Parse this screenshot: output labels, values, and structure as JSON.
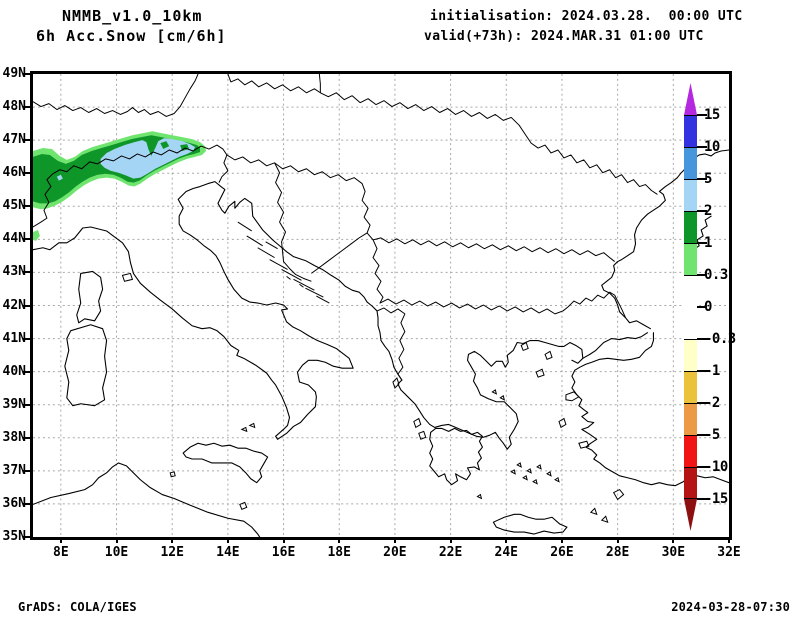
{
  "header": {
    "model": "NMMB_v1.0_10km",
    "field": "6h Acc.Snow [cm/6h]",
    "init_line": "initialisation: 2024.03.28.  00:00 UTC",
    "valid_line": "valid(+73h): 2024.MAR.31 01:00 UTC"
  },
  "footer": {
    "left": "GrADS: COLA/IGES",
    "right": "2024-03-28-07:30"
  },
  "axes": {
    "lat": [
      "49N",
      "48N",
      "47N",
      "46N",
      "45N",
      "44N",
      "43N",
      "42N",
      "41N",
      "40N",
      "39N",
      "38N",
      "37N",
      "36N",
      "35N"
    ],
    "lon": [
      "8E",
      "10E",
      "12E",
      "14E",
      "16E",
      "18E",
      "20E",
      "22E",
      "24E",
      "26E",
      "28E",
      "30E",
      "32E"
    ]
  },
  "colorbar": {
    "labels": [
      "15",
      "10",
      "5",
      "2",
      "1",
      "0.3",
      "0",
      "-0.3",
      "-1",
      "-2",
      "-5",
      "-10",
      "-15"
    ],
    "levels": [
      15,
      10,
      5,
      2,
      1,
      0.3,
      0,
      -0.3,
      -1,
      -2,
      -5,
      -10,
      -15
    ],
    "over_color": "#b428e0",
    "under_color": "#8c1010",
    "segments": [
      {
        "to": 15,
        "from": 10,
        "color": "#3232e0"
      },
      {
        "to": 10,
        "from": 5,
        "color": "#4596dc"
      },
      {
        "to": 5,
        "from": 2,
        "color": "#a5d5f5"
      },
      {
        "to": 2,
        "from": 1,
        "color": "#0f9628"
      },
      {
        "to": 1,
        "from": 0.3,
        "color": "#6fe46f"
      },
      {
        "to": 0.3,
        "from": -0.3,
        "color": "#ffffff"
      },
      {
        "to": -0.3,
        "from": -1,
        "color": "#ffffc8"
      },
      {
        "to": -1,
        "from": -2,
        "color": "#ecc23c"
      },
      {
        "to": -2,
        "from": -5,
        "color": "#ec9a46"
      },
      {
        "to": -5,
        "from": -10,
        "color": "#f01414"
      },
      {
        "to": -10,
        "from": -15,
        "color": "#b41414"
      }
    ]
  },
  "palette": {
    "light_green": "#6fe46f",
    "dark_green": "#0f9628",
    "light_blue": "#a5d5f5",
    "grid": "#a8a8a8"
  },
  "chart_data": {
    "type": "heatmap",
    "title": "6h Acc.Snow [cm/6h]",
    "model": "NMMB_v1.0_10km",
    "initialisation": "2024.03.28.  00:00 UTC",
    "valid": "+73h: 2024.MAR.31 01:00 UTC",
    "x_ticks": [
      "8E",
      "10E",
      "12E",
      "14E",
      "16E",
      "18E",
      "20E",
      "22E",
      "24E",
      "26E",
      "28E",
      "30E",
      "32E"
    ],
    "y_ticks": [
      "49N",
      "48N",
      "47N",
      "46N",
      "45N",
      "44N",
      "43N",
      "42N",
      "41N",
      "40N",
      "39N",
      "38N",
      "37N",
      "36N",
      "35N"
    ],
    "colorbar_levels": [
      15,
      10,
      5,
      2,
      1,
      0.3,
      0,
      -0.3,
      -1,
      -2,
      -5,
      -10,
      -15
    ],
    "legend_position": "right",
    "grid": "dotted, 1° latitude / 2° longitude",
    "data_regions": [
      {
        "area": "Alpine arc, ~7E-13.5E / 44.7N-47.3N",
        "value": "snow band 0.3-2 cm/6h (green), core 2-5 cm/6h (light blue)"
      },
      {
        "area": "rest of domain",
        "value": "0 (no accumulation)"
      }
    ]
  }
}
